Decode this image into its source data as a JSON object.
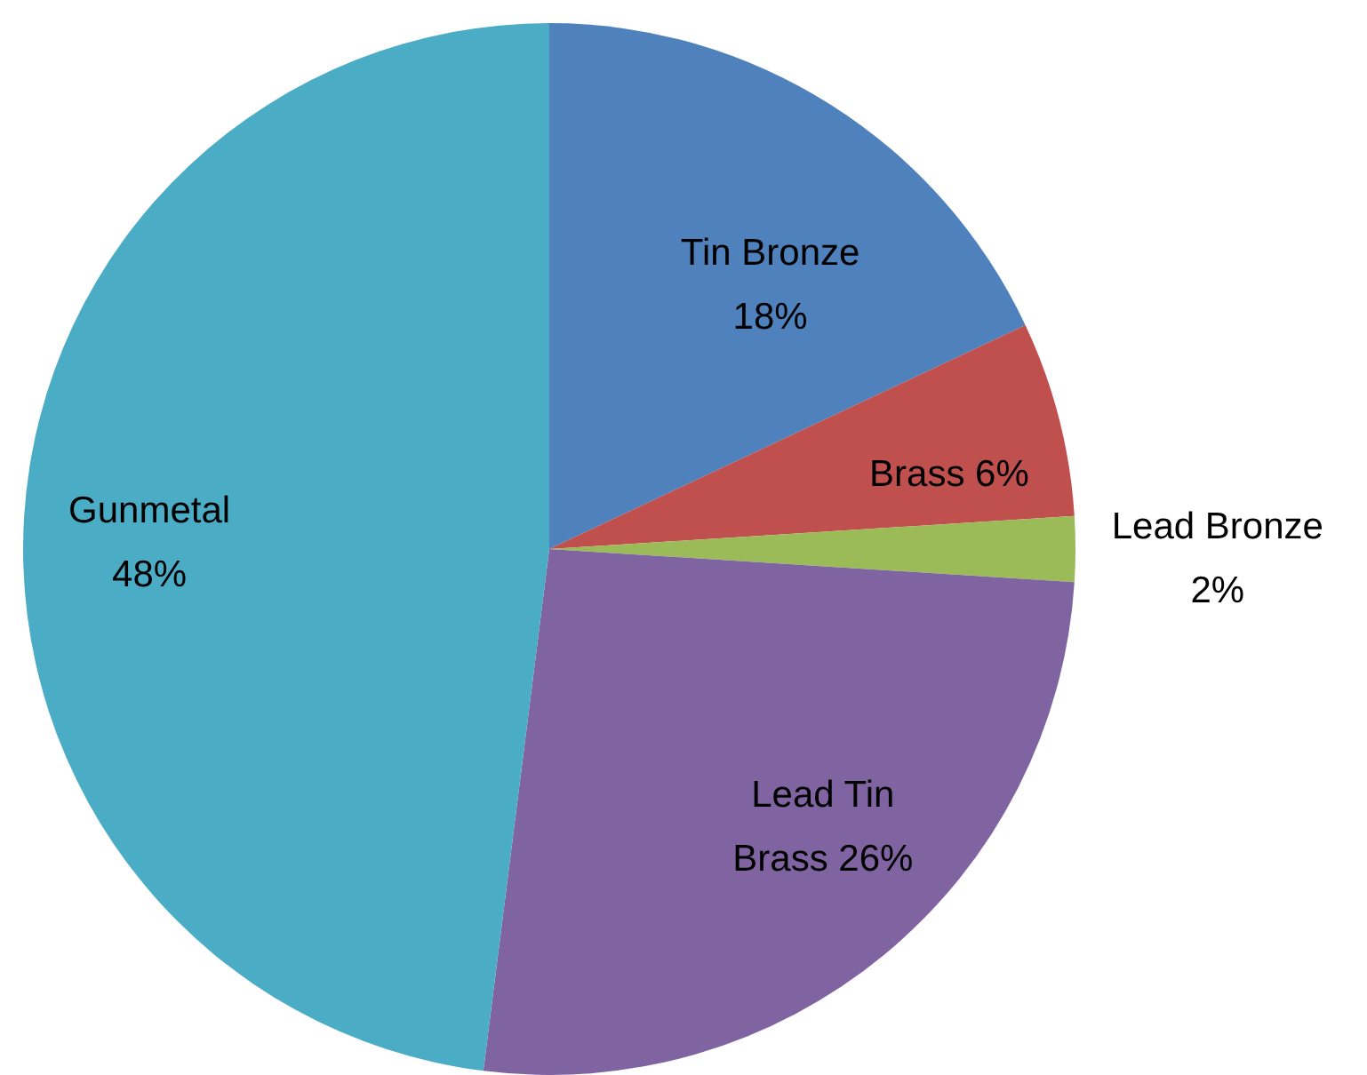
{
  "chart_data": {
    "type": "pie",
    "categories": [
      "Tin Bronze",
      "Brass",
      "Lead Bronze",
      "Lead Tin Brass",
      "Gunmetal"
    ],
    "values": [
      18,
      6,
      2,
      26,
      48
    ],
    "value_labels": [
      "18%",
      "6%",
      "2%",
      "26%",
      "48%"
    ],
    "colors": [
      "#4f81bd",
      "#c0504d",
      "#9bbb59",
      "#8064a2",
      "#4bacc6"
    ]
  }
}
